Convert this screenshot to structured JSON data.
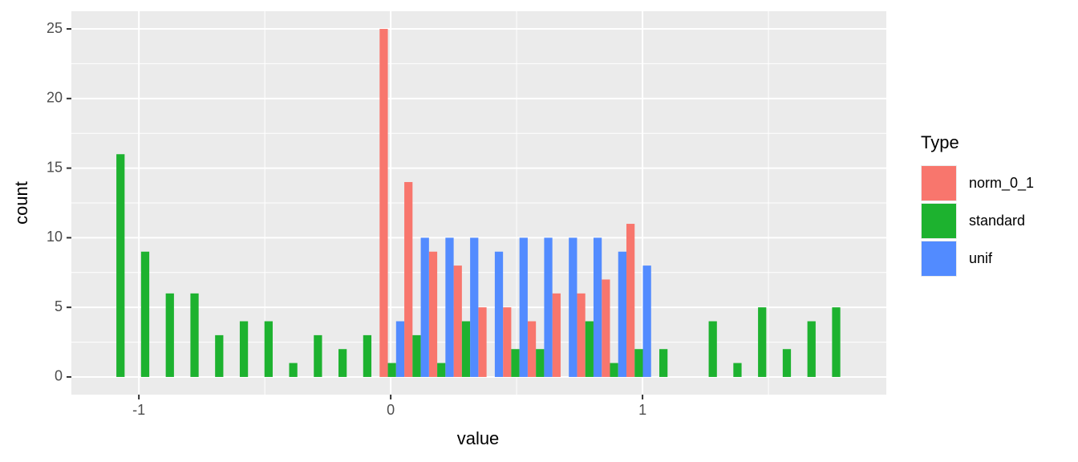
{
  "chart_data": {
    "type": "histogram",
    "xlabel": "value",
    "ylabel": "count",
    "legend_title": "Type",
    "bins": [
      -1.122,
      -1.024,
      -0.926,
      -0.828,
      -0.73,
      -0.632,
      -0.534,
      -0.436,
      -0.338,
      -0.24,
      -0.142,
      -0.044,
      0.054,
      0.152,
      0.25,
      0.348,
      0.446,
      0.544,
      0.642,
      0.74,
      0.838,
      0.936,
      1.034,
      1.132,
      1.23,
      1.328,
      1.426,
      1.524,
      1.622,
      1.72,
      1.818
    ],
    "series": [
      {
        "name": "norm_0_1",
        "color": "#f8766d",
        "values": [
          0,
          0,
          0,
          0,
          0,
          0,
          0,
          0,
          0,
          0,
          0,
          25,
          14,
          9,
          8,
          5,
          5,
          4,
          6,
          6,
          7,
          11,
          0,
          0,
          0,
          0,
          0,
          0,
          0,
          0
        ]
      },
      {
        "name": "standard",
        "color": "#1db22f",
        "values": [
          16,
          9,
          6,
          6,
          3,
          4,
          4,
          1,
          3,
          2,
          3,
          1,
          3,
          1,
          4,
          0,
          2,
          2,
          0,
          4,
          1,
          2,
          2,
          0,
          4,
          1,
          5,
          2,
          4,
          5
        ]
      },
      {
        "name": "unif",
        "color": "#528bff",
        "values": [
          0,
          0,
          0,
          0,
          0,
          0,
          0,
          0,
          0,
          0,
          0,
          4,
          10,
          10,
          10,
          9,
          10,
          10,
          10,
          10,
          9,
          8,
          0,
          0,
          0,
          0,
          0,
          0,
          0,
          0
        ]
      }
    ],
    "position": "dodge",
    "xlim": [
      -1.268,
      1.968
    ],
    "xticks": [
      -1,
      0,
      1
    ],
    "ylim": [
      -1.27,
      26.27
    ],
    "yticks": [
      0,
      5,
      10,
      15,
      20,
      25
    ],
    "grid": true,
    "legend": "right"
  }
}
